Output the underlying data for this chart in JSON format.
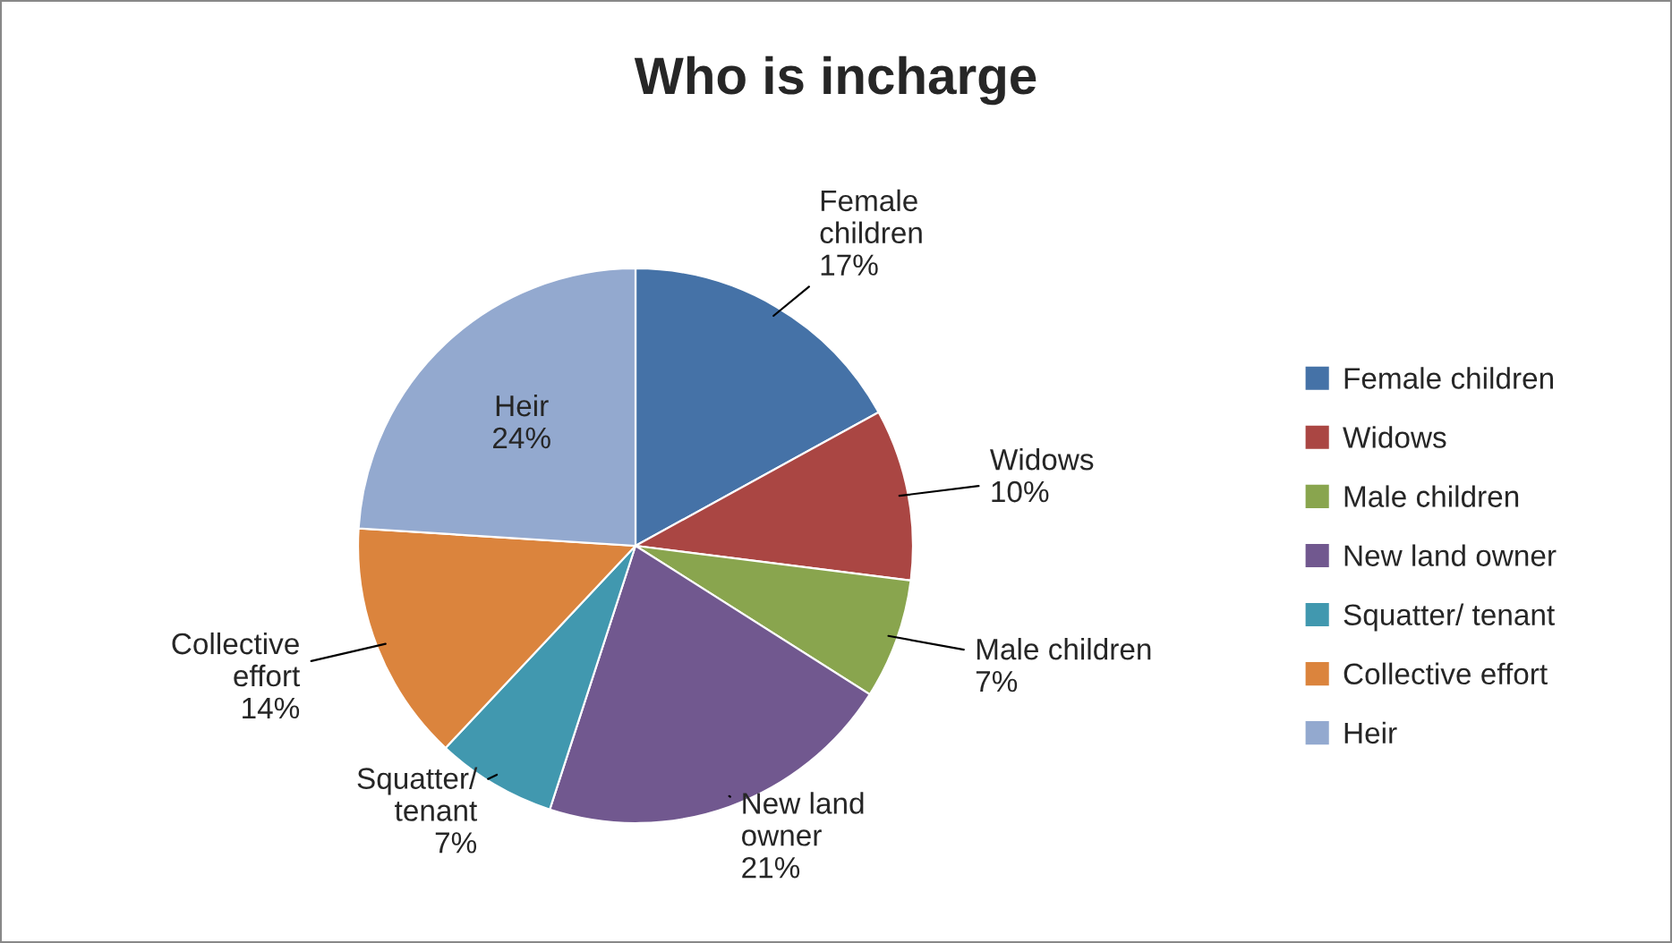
{
  "chart_data": {
    "type": "pie",
    "title": "Who is incharge",
    "categories": [
      "Female children",
      "Widows",
      "Male children",
      "New land owner",
      "Squatter/ tenant",
      "Collective effort",
      "Heir"
    ],
    "values": [
      17,
      10,
      7,
      21,
      7,
      14,
      24
    ],
    "value_labels": [
      "17%",
      "10%",
      "7%",
      "21%",
      "7%",
      "14%",
      "24%"
    ],
    "colors": [
      "#4572a7",
      "#aa4643",
      "#89a54e",
      "#71588f",
      "#4198af",
      "#db843d",
      "#93a9cf"
    ],
    "legend": "right"
  }
}
